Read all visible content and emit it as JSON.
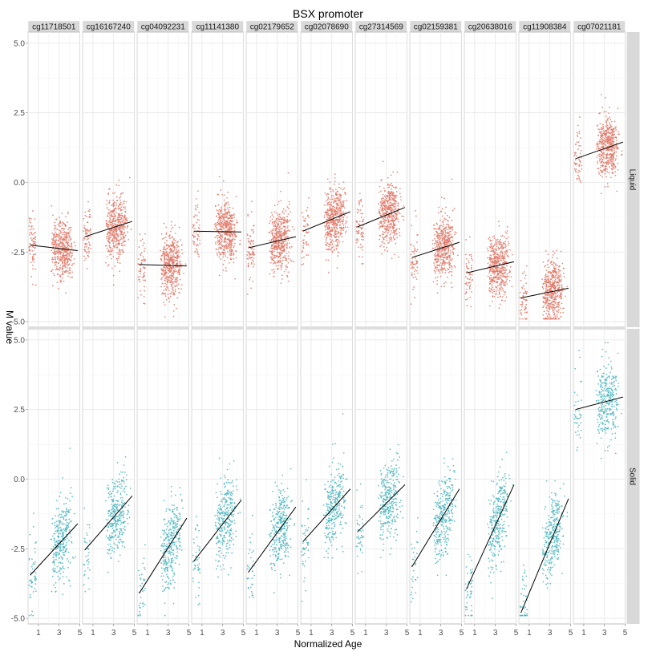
{
  "chart_data": {
    "type": "scatter",
    "title": "BSX promoter",
    "xlabel": "Normalized Age",
    "ylabel": "M value",
    "xlim": [
      0,
      5
    ],
    "ylim": [
      -5.2,
      5.4
    ],
    "x_ticks": [
      1,
      3,
      5
    ],
    "x_tick_labels": [
      "1",
      "3",
      "5"
    ],
    "y_ticks": [
      5.0,
      2.5,
      0.0,
      -2.5,
      -5.0
    ],
    "y_tick_labels": [
      "5.0",
      "2.5",
      "0.0",
      "-2.5",
      "-5.0"
    ],
    "grid": true,
    "legend": "none",
    "facet_columns": [
      "cg11718501",
      "cg16167240",
      "cg04092231",
      "cg11141380",
      "cg02179652",
      "cg02078690",
      "cg27314569",
      "cg02159381",
      "cg20638016",
      "cg11908384",
      "cg07021181"
    ],
    "facet_rows": [
      {
        "name": "Liquid",
        "color": "#E07A6A",
        "trend": [
          {
            "x": [
              0.2,
              4.8
            ],
            "y": [
              -2.25,
              -2.45
            ]
          },
          {
            "x": [
              0.2,
              4.8
            ],
            "y": [
              -1.95,
              -1.4
            ]
          },
          {
            "x": [
              0.2,
              4.8
            ],
            "y": [
              -2.95,
              -3.0
            ]
          },
          {
            "x": [
              0.2,
              4.8
            ],
            "y": [
              -1.75,
              -1.78
            ]
          },
          {
            "x": [
              0.2,
              4.8
            ],
            "y": [
              -2.35,
              -1.95
            ]
          },
          {
            "x": [
              0.2,
              4.8
            ],
            "y": [
              -1.75,
              -1.05
            ]
          },
          {
            "x": [
              0.2,
              4.8
            ],
            "y": [
              -1.6,
              -0.9
            ]
          },
          {
            "x": [
              0.2,
              4.8
            ],
            "y": [
              -2.7,
              -2.15
            ]
          },
          {
            "x": [
              0.2,
              4.8
            ],
            "y": [
              -3.25,
              -2.85
            ]
          },
          {
            "x": [
              0.2,
              4.8
            ],
            "y": [
              -4.15,
              -3.8
            ]
          },
          {
            "x": [
              0.2,
              4.8
            ],
            "y": [
              0.85,
              1.45
            ]
          }
        ]
      },
      {
        "name": "Solid",
        "color": "#4FB6BF",
        "trend": [
          {
            "x": [
              0.2,
              4.8
            ],
            "y": [
              -3.45,
              -1.6
            ]
          },
          {
            "x": [
              0.2,
              4.8
            ],
            "y": [
              -2.55,
              -0.6
            ]
          },
          {
            "x": [
              0.2,
              4.8
            ],
            "y": [
              -4.1,
              -1.4
            ]
          },
          {
            "x": [
              0.2,
              4.8
            ],
            "y": [
              -2.95,
              -0.75
            ]
          },
          {
            "x": [
              0.2,
              4.8
            ],
            "y": [
              -3.35,
              -1.0
            ]
          },
          {
            "x": [
              0.2,
              4.8
            ],
            "y": [
              -2.25,
              -0.35
            ]
          },
          {
            "x": [
              0.2,
              4.8
            ],
            "y": [
              -1.9,
              -0.2
            ]
          },
          {
            "x": [
              0.2,
              4.8
            ],
            "y": [
              -3.15,
              -0.35
            ]
          },
          {
            "x": [
              0.2,
              4.8
            ],
            "y": [
              -3.95,
              -0.2
            ]
          },
          {
            "x": [
              0.2,
              4.8
            ],
            "y": [
              -4.8,
              -0.7
            ]
          },
          {
            "x": [
              0.2,
              4.8
            ],
            "y": [
              2.5,
              2.95
            ]
          }
        ]
      }
    ]
  }
}
